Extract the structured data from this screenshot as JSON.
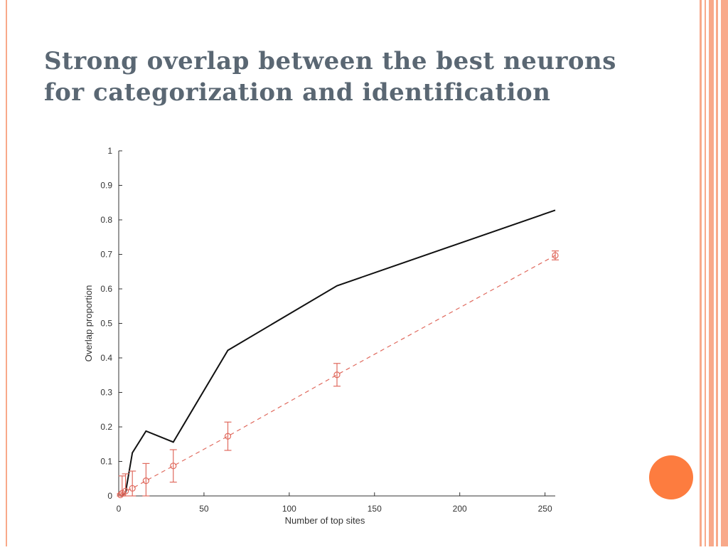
{
  "slide": {
    "title_line1": "Strong overlap between the best neurons",
    "title_line2": "for categorization and identification"
  },
  "colors": {
    "accent_decor": "#f8a98a",
    "title_text": "#5a6773",
    "dot": "#fd7c3f",
    "series_observed": "#111111",
    "series_chance": "#e06a5e"
  },
  "chart_data": {
    "type": "line",
    "title": "",
    "xlabel": "Number of top sites",
    "ylabel": "Overlap proportion",
    "xlim": [
      0,
      256
    ],
    "ylim": [
      0,
      1
    ],
    "xticks": [
      0,
      50,
      100,
      150,
      200,
      250
    ],
    "yticks": [
      0,
      0.1,
      0.2,
      0.3,
      0.4,
      0.5,
      0.6,
      0.7,
      0.8,
      0.9,
      1
    ],
    "grid": false,
    "legend": "none",
    "series": [
      {
        "style": "solid",
        "x": [
          1,
          2,
          4,
          8,
          16,
          32,
          64,
          128,
          256
        ],
        "y": [
          0,
          0,
          0.01,
          0.125,
          0.188,
          0.156,
          0.422,
          0.609,
          0.828
        ]
      },
      {
        "style": "dashed",
        "markers": "circle",
        "x": [
          1,
          2,
          4,
          8,
          16,
          32,
          64,
          128,
          256
        ],
        "y": [
          0.003,
          0.008,
          0.014,
          0.022,
          0.044,
          0.087,
          0.173,
          0.351,
          0.697
        ],
        "err": [
          0.003,
          0.05,
          0.05,
          0.05,
          0.05,
          0.047,
          0.041,
          0.033,
          0.013
        ]
      }
    ]
  }
}
